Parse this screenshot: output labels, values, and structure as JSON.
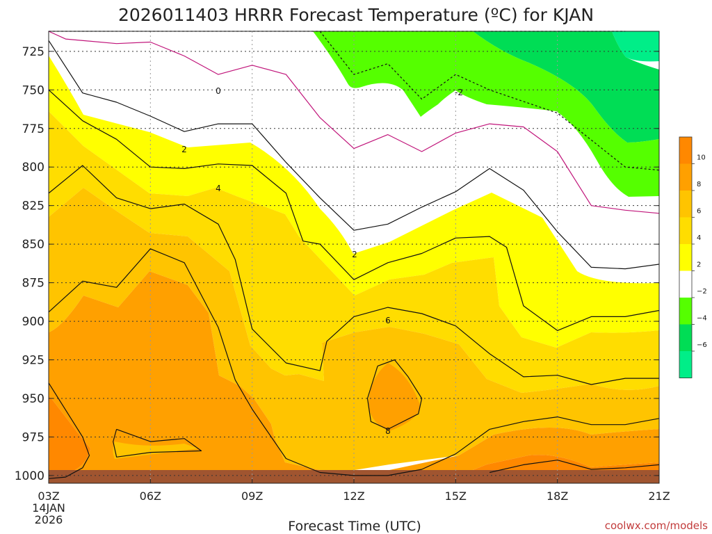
{
  "chart_data": {
    "type": "contour",
    "title": "2026011403 HRRR Forecast Temperature (ºC) for KJAN",
    "xlabel": "Forecast Time (UTC)",
    "credit": "coolwx.com/models",
    "x_ticks": [
      "03Z",
      "06Z",
      "09Z",
      "12Z",
      "15Z",
      "18Z",
      "21Z"
    ],
    "x_start_date": [
      "14JAN",
      "2026"
    ],
    "y_axis": {
      "type": "pressure",
      "units": "hPa",
      "reversed": true,
      "range": [
        1005,
        712
      ]
    },
    "y_ticks": [
      "725",
      "750",
      "775",
      "800",
      "825",
      "850",
      "875",
      "900",
      "925",
      "950",
      "975",
      "1000"
    ],
    "grid": true,
    "contour_interval": 2,
    "fill_bands": [
      {
        "range": "< -6",
        "color": "#00ee88"
      },
      {
        "range": "-6 to -4",
        "color": "#00dd55"
      },
      {
        "range": "-4 to -2",
        "color": "#55ff00"
      },
      {
        "range": "-2 to 2",
        "color": "#ffffff"
      },
      {
        "range": "2 to 4",
        "color": "#ffff00"
      },
      {
        "range": "4 to 6",
        "color": "#ffdd00"
      },
      {
        "range": "6 to 8",
        "color": "#ffc400"
      },
      {
        "range": "8 to 10",
        "color": "#ffa000"
      },
      {
        "range": "> 10",
        "color": "#ff8800"
      }
    ],
    "ground_color": "#a05530",
    "colorbar_ticks": [
      "10",
      "8",
      "6",
      "4",
      "2",
      "−2",
      "−4",
      "−6"
    ],
    "contour_labels": [
      "0",
      "2",
      "4",
      "2",
      "6",
      "8",
      "-2"
    ],
    "contours": [
      {
        "level": -4,
        "style": "dashed",
        "points": [
          [
            3,
            712
          ],
          [
            5,
            712
          ],
          [
            8,
            712
          ],
          [
            11,
            712
          ],
          [
            13,
            712
          ],
          [
            15,
            712
          ],
          [
            16,
            712
          ],
          [
            18,
            712
          ],
          [
            20,
            712
          ]
        ]
      },
      {
        "level": -2,
        "style": "dashed",
        "points": [
          [
            11,
            712
          ],
          [
            12,
            740
          ],
          [
            13,
            733
          ],
          [
            14,
            756
          ],
          [
            15,
            740
          ],
          [
            16,
            750
          ],
          [
            18,
            765
          ],
          [
            20,
            800
          ],
          [
            21,
            802
          ]
        ]
      },
      {
        "level": 0,
        "style": "solid",
        "points": [
          [
            3,
            712
          ],
          [
            3.5,
            717
          ],
          [
            5,
            720
          ],
          [
            6,
            719
          ],
          [
            7,
            728
          ],
          [
            8,
            740
          ],
          [
            9,
            734
          ],
          [
            10,
            740
          ],
          [
            11,
            768
          ],
          [
            12,
            788
          ],
          [
            13,
            779
          ],
          [
            14,
            790
          ],
          [
            15,
            778
          ],
          [
            16,
            772
          ],
          [
            17,
            774
          ],
          [
            18,
            790
          ],
          [
            19,
            825
          ],
          [
            20,
            828
          ],
          [
            21,
            830
          ]
        ]
      },
      {
        "level": 2,
        "style": "solid",
        "points": [
          [
            3,
            718
          ],
          [
            4,
            752
          ],
          [
            5,
            758
          ],
          [
            6,
            767
          ],
          [
            7,
            777
          ],
          [
            8,
            772
          ],
          [
            9,
            772
          ],
          [
            10,
            797
          ],
          [
            11,
            820
          ],
          [
            12,
            841
          ],
          [
            13,
            837
          ],
          [
            14,
            826
          ],
          [
            15,
            816
          ],
          [
            16,
            801
          ],
          [
            17,
            815
          ],
          [
            18,
            842
          ],
          [
            19,
            865
          ],
          [
            20,
            866
          ],
          [
            21,
            863
          ]
        ]
      },
      {
        "level": 4,
        "style": "solid",
        "points": [
          [
            3,
            750
          ],
          [
            4,
            770
          ],
          [
            5,
            782
          ],
          [
            6,
            800
          ],
          [
            7,
            801
          ],
          [
            8,
            798
          ],
          [
            9,
            799
          ],
          [
            10,
            817
          ],
          [
            10.5,
            848
          ],
          [
            11,
            850
          ],
          [
            12,
            873
          ],
          [
            13,
            862
          ],
          [
            14,
            856
          ],
          [
            15,
            846
          ],
          [
            16,
            845
          ],
          [
            16.5,
            852
          ],
          [
            17,
            890
          ],
          [
            18,
            906
          ],
          [
            19,
            897
          ],
          [
            20,
            897
          ],
          [
            21,
            893
          ]
        ]
      },
      {
        "level": 6,
        "style": "solid",
        "points": [
          [
            3,
            817
          ],
          [
            4,
            799
          ],
          [
            5,
            820
          ],
          [
            6,
            827
          ],
          [
            7,
            824
          ],
          [
            8,
            837
          ],
          [
            8.5,
            860
          ],
          [
            9,
            905
          ],
          [
            10,
            927
          ],
          [
            11,
            932
          ],
          [
            11.2,
            913
          ],
          [
            12,
            897
          ],
          [
            13,
            891
          ],
          [
            14,
            895
          ],
          [
            15,
            903
          ],
          [
            16,
            921
          ],
          [
            17,
            936
          ],
          [
            18,
            935
          ],
          [
            19,
            941
          ],
          [
            20,
            937
          ],
          [
            21,
            937
          ]
        ]
      },
      {
        "level": 8,
        "style": "solid",
        "points": [
          [
            3,
            894
          ],
          [
            4,
            874
          ],
          [
            5,
            878
          ],
          [
            6,
            853
          ],
          [
            7,
            862
          ],
          [
            8,
            904
          ],
          [
            8.5,
            938
          ],
          [
            9,
            957
          ],
          [
            10,
            989
          ],
          [
            11,
            998
          ],
          [
            12,
            1000
          ],
          [
            13,
            1000
          ],
          [
            14,
            996
          ],
          [
            15,
            986
          ],
          [
            16,
            970
          ],
          [
            17,
            965
          ],
          [
            18,
            962
          ],
          [
            19,
            967
          ],
          [
            20,
            967
          ],
          [
            21,
            963
          ]
        ]
      },
      {
        "level": 8,
        "style": "closed",
        "points": [
          [
            12.7,
            929
          ],
          [
            13.2,
            925
          ],
          [
            13.6,
            936
          ],
          [
            14,
            950
          ],
          [
            13.9,
            960
          ],
          [
            13,
            970
          ],
          [
            12.5,
            965
          ],
          [
            12.4,
            950
          ],
          [
            12.7,
            929
          ]
        ]
      },
      {
        "level": 8,
        "style": "closed",
        "points": [
          [
            5,
            970
          ],
          [
            6,
            978
          ],
          [
            7,
            976
          ],
          [
            7.5,
            984
          ],
          [
            6,
            985
          ],
          [
            5,
            988
          ],
          [
            4.9,
            978
          ],
          [
            5,
            970
          ]
        ]
      },
      {
        "level": 10,
        "style": "solid",
        "points": [
          [
            3,
            940
          ],
          [
            4,
            975
          ],
          [
            4.2,
            987
          ],
          [
            4,
            995
          ],
          [
            3.5,
            1001
          ],
          [
            3,
            1002
          ]
        ]
      },
      {
        "level": 10,
        "style": "solid",
        "points": [
          [
            16,
            998
          ],
          [
            17,
            993
          ],
          [
            18,
            990
          ],
          [
            19,
            996
          ],
          [
            20,
            995
          ],
          [
            21,
            993
          ]
        ]
      }
    ]
  }
}
